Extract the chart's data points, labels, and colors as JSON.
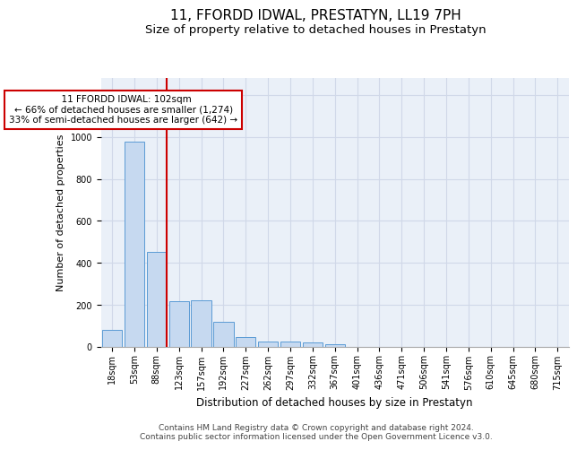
{
  "title": "11, FFORDD IDWAL, PRESTATYN, LL19 7PH",
  "subtitle": "Size of property relative to detached houses in Prestatyn",
  "xlabel": "Distribution of detached houses by size in Prestatyn",
  "ylabel": "Number of detached properties",
  "bar_labels": [
    "18sqm",
    "53sqm",
    "88sqm",
    "123sqm",
    "157sqm",
    "192sqm",
    "227sqm",
    "262sqm",
    "297sqm",
    "332sqm",
    "367sqm",
    "401sqm",
    "436sqm",
    "471sqm",
    "506sqm",
    "541sqm",
    "576sqm",
    "610sqm",
    "645sqm",
    "680sqm",
    "715sqm"
  ],
  "bar_values": [
    82,
    975,
    453,
    218,
    220,
    118,
    48,
    27,
    25,
    20,
    12,
    0,
    0,
    0,
    0,
    0,
    0,
    0,
    0,
    0,
    0
  ],
  "bar_color": "#c6d9f0",
  "bar_edge_color": "#5b9bd5",
  "vline_x": 2.45,
  "annotation_line1": "  11 FFORDD IDWAL: 102sqm",
  "annotation_line2": "← 66% of detached houses are smaller (1,274)",
  "annotation_line3": "33% of semi-detached houses are larger (642) →",
  "annotation_box_color": "#ffffff",
  "annotation_box_edge": "#cc0000",
  "vline_color": "#cc0000",
  "ylim": [
    0,
    1280
  ],
  "yticks": [
    0,
    200,
    400,
    600,
    800,
    1000,
    1200
  ],
  "grid_color": "#d0d8e8",
  "background_color": "#eaf0f8",
  "footer_text": "Contains HM Land Registry data © Crown copyright and database right 2024.\nContains public sector information licensed under the Open Government Licence v3.0.",
  "title_fontsize": 11,
  "subtitle_fontsize": 9.5,
  "xlabel_fontsize": 8.5,
  "ylabel_fontsize": 8,
  "tick_fontsize": 7,
  "annotation_fontsize": 7.5,
  "footer_fontsize": 6.5
}
